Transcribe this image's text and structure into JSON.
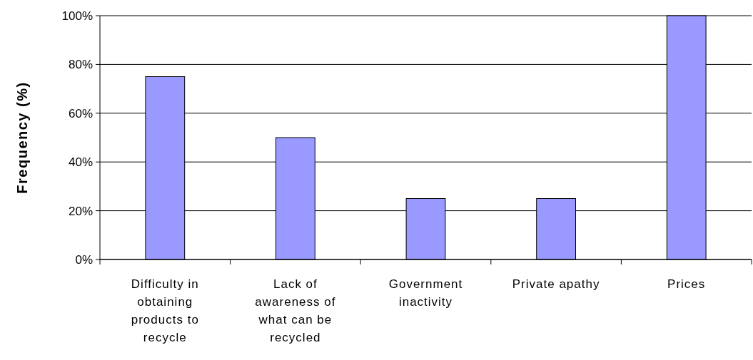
{
  "chart_data": {
    "type": "bar",
    "ylabel": "Frequency (%)",
    "categories": [
      "Difficulty in obtaining products to recycle",
      "Lack of awareness of what can be recycled",
      "Government inactivity",
      "Private apathy",
      "Prices"
    ],
    "values": [
      75,
      50,
      25,
      25,
      100
    ],
    "color": "#9999ff",
    "ylim": [
      0,
      100
    ],
    "yticks": [
      {
        "value": 0,
        "label": "0%"
      },
      {
        "value": 20,
        "label": "20%"
      },
      {
        "value": 40,
        "label": "40%"
      },
      {
        "value": 60,
        "label": "60%"
      },
      {
        "value": 80,
        "label": "80%"
      },
      {
        "value": 100,
        "label": "100%"
      }
    ],
    "grid": "y"
  }
}
